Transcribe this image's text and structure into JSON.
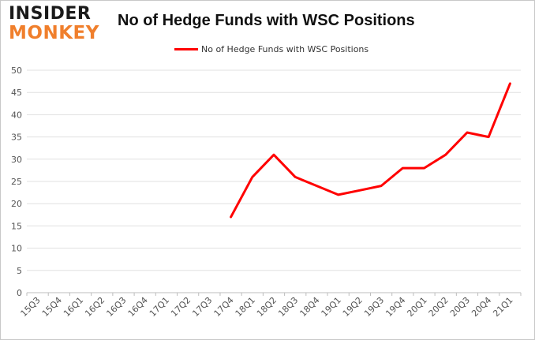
{
  "branding": {
    "logo_top": "INSIDER",
    "logo_bottom": "MONKEY",
    "logo_top_color": "#1a1a1a",
    "logo_bottom_color": "#f07f2c"
  },
  "chart_data": {
    "type": "line",
    "title": "No of Hedge Funds with WSC Positions",
    "xlabel": "",
    "ylabel": "",
    "categories": [
      "15Q3",
      "15Q4",
      "16Q1",
      "16Q2",
      "16Q3",
      "16Q4",
      "17Q1",
      "17Q2",
      "17Q3",
      "17Q4",
      "18Q1",
      "18Q2",
      "18Q3",
      "18Q4",
      "19Q1",
      "19Q2",
      "19Q3",
      "19Q4",
      "20Q1",
      "20Q2",
      "20Q3",
      "20Q4",
      "21Q1"
    ],
    "series": [
      {
        "name": "No of Hedge Funds with WSC Positions",
        "color": "#ff0000",
        "values": [
          null,
          null,
          null,
          null,
          null,
          null,
          null,
          null,
          null,
          17,
          26,
          31,
          26,
          24,
          22,
          23,
          24,
          28,
          28,
          31,
          36,
          35,
          47
        ]
      }
    ],
    "ylim": [
      0,
      50
    ],
    "yticks": [
      0,
      5,
      10,
      15,
      20,
      25,
      30,
      35,
      40,
      45,
      50
    ],
    "grid": true,
    "legend_position": "top-center"
  }
}
